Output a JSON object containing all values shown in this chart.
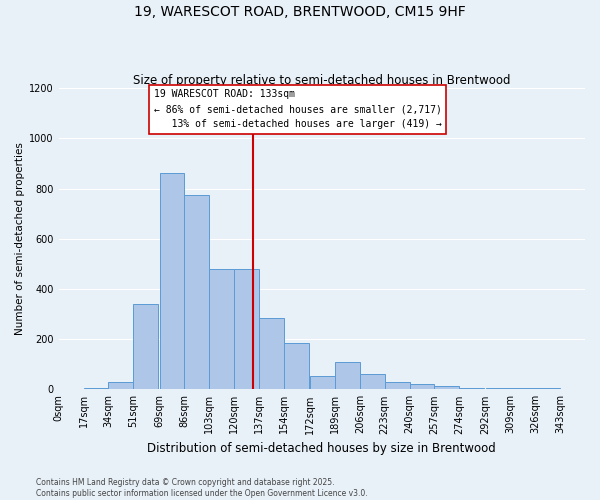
{
  "title": "19, WARESCOT ROAD, BRENTWOOD, CM15 9HF",
  "subtitle": "Size of property relative to semi-detached houses in Brentwood",
  "xlabel": "Distribution of semi-detached houses by size in Brentwood",
  "ylabel": "Number of semi-detached properties",
  "bin_labels": [
    "0sqm",
    "17sqm",
    "34sqm",
    "51sqm",
    "69sqm",
    "86sqm",
    "103sqm",
    "120sqm",
    "137sqm",
    "154sqm",
    "172sqm",
    "189sqm",
    "206sqm",
    "223sqm",
    "240sqm",
    "257sqm",
    "274sqm",
    "292sqm",
    "309sqm",
    "326sqm",
    "343sqm"
  ],
  "bin_edges": [
    0,
    17,
    34,
    51,
    69,
    86,
    103,
    120,
    137,
    154,
    172,
    189,
    206,
    223,
    240,
    257,
    274,
    292,
    309,
    326,
    343
  ],
  "bar_heights": [
    0,
    5,
    30,
    340,
    860,
    775,
    480,
    480,
    285,
    185,
    55,
    110,
    60,
    30,
    20,
    15,
    5,
    5,
    5,
    5,
    0
  ],
  "bar_color": "#aec6e8",
  "bar_edge_color": "#5b9bd5",
  "property_value": 133,
  "vline_color": "#cc0000",
  "annotation_line1": "19 WARESCOT ROAD: 133sqm",
  "annotation_line2": "← 86% of semi-detached houses are smaller (2,717)",
  "annotation_line3": "   13% of semi-detached houses are larger (419) →",
  "annotation_box_color": "#ffffff",
  "annotation_box_edge": "#cc0000",
  "ylim": [
    0,
    1200
  ],
  "yticks": [
    0,
    200,
    400,
    600,
    800,
    1000,
    1200
  ],
  "background_color": "#e8f0f8",
  "footer_text": "Contains HM Land Registry data © Crown copyright and database right 2025.\nContains public sector information licensed under the Open Government Licence v3.0.",
  "title_fontsize": 10,
  "subtitle_fontsize": 8.5,
  "xlabel_fontsize": 8.5,
  "ylabel_fontsize": 7.5,
  "tick_fontsize": 7,
  "annotation_fontsize": 7,
  "footer_fontsize": 5.5
}
